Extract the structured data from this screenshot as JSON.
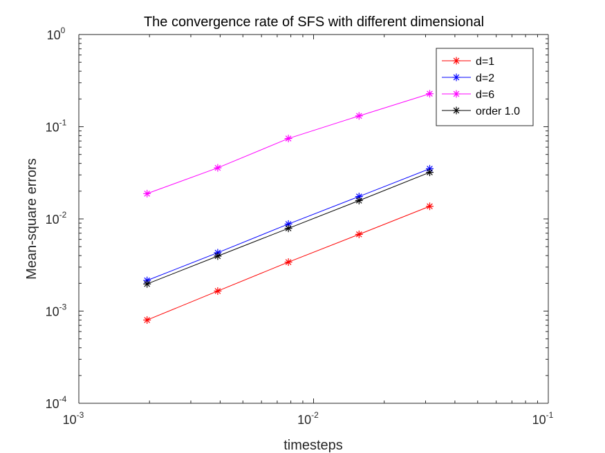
{
  "chart_data": {
    "type": "line",
    "title": "The convergence rate of SFS with different dimensional",
    "xlabel": "timesteps",
    "ylabel": "Mean-square errors",
    "xscale": "log",
    "yscale": "log",
    "xlim": [
      0.001,
      0.1
    ],
    "ylim": [
      0.0001,
      1
    ],
    "x_ticks": [
      {
        "value": 0.001,
        "base": "10",
        "exp": "-3"
      },
      {
        "value": 0.01,
        "base": "10",
        "exp": "-2"
      },
      {
        "value": 0.1,
        "base": "10",
        "exp": "-1"
      }
    ],
    "y_ticks": [
      {
        "value": 0.0001,
        "base": "10",
        "exp": "-4"
      },
      {
        "value": 0.001,
        "base": "10",
        "exp": "-3"
      },
      {
        "value": 0.01,
        "base": "10",
        "exp": "-2"
      },
      {
        "value": 0.1,
        "base": "10",
        "exp": "-1"
      },
      {
        "value": 1,
        "base": "10",
        "exp": "0"
      }
    ],
    "x": [
      0.001953125,
      0.00390625,
      0.0078125,
      0.015625,
      0.03125
    ],
    "series": [
      {
        "name": "d=1",
        "color": "#ff0000",
        "marker": "asterisk",
        "values": [
          0.0008,
          0.00165,
          0.0034,
          0.0068,
          0.0137
        ]
      },
      {
        "name": "d=2",
        "color": "#0000ff",
        "marker": "asterisk",
        "values": [
          0.00215,
          0.0043,
          0.0088,
          0.0175,
          0.035
        ]
      },
      {
        "name": "d=6",
        "color": "#ff00ff",
        "marker": "asterisk",
        "values": [
          0.0188,
          0.0358,
          0.0745,
          0.131,
          0.228
        ]
      },
      {
        "name": "order 1.0",
        "color": "#000000",
        "marker": "asterisk",
        "values": [
          0.00197,
          0.00395,
          0.0079,
          0.0158,
          0.032
        ]
      }
    ],
    "legend_position": "top-right",
    "grid": false
  }
}
